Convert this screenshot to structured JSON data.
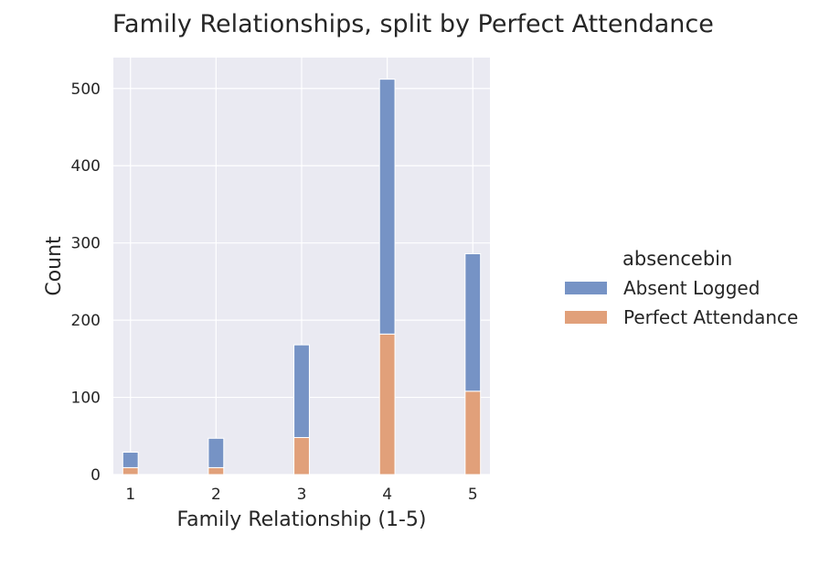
{
  "chart_data": {
    "type": "bar",
    "stacked": true,
    "title": "Family Relationships, split by Perfect Attendance",
    "xlabel": "Family Relationship (1-5)",
    "ylabel": "Count",
    "categories": [
      1,
      2,
      3,
      4,
      5
    ],
    "xlim": [
      0.8,
      5.2
    ],
    "ylim": [
      0,
      540
    ],
    "yticks": [
      0,
      100,
      200,
      300,
      400,
      500
    ],
    "grid": true,
    "legend": {
      "title": "absencebin",
      "placement": "right"
    },
    "series": [
      {
        "name": "Perfect Attendance",
        "color": "#e1a07a",
        "values": [
          9,
          9,
          48,
          182,
          108
        ]
      },
      {
        "name": "Absent Logged",
        "color": "#7693c5",
        "values": [
          20,
          38,
          120,
          330,
          178
        ]
      }
    ]
  }
}
